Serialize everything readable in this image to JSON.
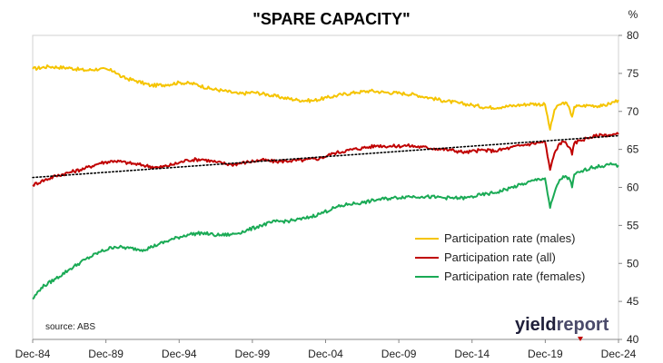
{
  "chart_data": {
    "type": "line",
    "title": "\"SPARE CAPACITY\"",
    "ylabel": "%",
    "ylim": [
      40,
      80
    ],
    "y_ticks": [
      40,
      45,
      50,
      55,
      60,
      65,
      70,
      75,
      80
    ],
    "x_tick_labels": [
      "Dec-84",
      "Dec-89",
      "Dec-94",
      "Dec-99",
      "Dec-04",
      "Dec-09",
      "Dec-14",
      "Dec-19",
      "Dec-24"
    ],
    "x_tick_years": [
      1984.92,
      1989.92,
      1994.92,
      1999.92,
      2004.92,
      2009.92,
      2014.92,
      2019.92,
      2024.92
    ],
    "xlim": [
      1984.92,
      2024.92
    ],
    "grid": false,
    "legend_position": "bottom-right",
    "series": [
      {
        "name": "Participation rate (males)",
        "color": "#f5c400",
        "points": [
          [
            1984.92,
            75.6
          ],
          [
            1986.0,
            75.9
          ],
          [
            1987.5,
            75.7
          ],
          [
            1988.5,
            75.4
          ],
          [
            1989.5,
            75.6
          ],
          [
            1990.5,
            75.3
          ],
          [
            1991.0,
            74.5
          ],
          [
            1992.0,
            74.0
          ],
          [
            1993.0,
            73.4
          ],
          [
            1994.0,
            73.5
          ],
          [
            1995.0,
            73.8
          ],
          [
            1996.0,
            73.6
          ],
          [
            1997.0,
            73.0
          ],
          [
            1998.0,
            72.7
          ],
          [
            1999.0,
            72.3
          ],
          [
            2000.0,
            72.5
          ],
          [
            2001.0,
            72.2
          ],
          [
            2002.0,
            71.8
          ],
          [
            2003.0,
            71.5
          ],
          [
            2004.0,
            71.4
          ],
          [
            2005.0,
            71.8
          ],
          [
            2006.0,
            72.2
          ],
          [
            2007.0,
            72.5
          ],
          [
            2008.0,
            72.7
          ],
          [
            2009.0,
            72.5
          ],
          [
            2010.0,
            72.4
          ],
          [
            2011.0,
            72.2
          ],
          [
            2012.0,
            71.8
          ],
          [
            2013.0,
            71.4
          ],
          [
            2014.0,
            71.1
          ],
          [
            2015.0,
            70.8
          ],
          [
            2016.0,
            70.5
          ],
          [
            2017.0,
            70.6
          ],
          [
            2018.0,
            70.8
          ],
          [
            2019.0,
            71.0
          ],
          [
            2019.9,
            70.9
          ],
          [
            2020.25,
            67.6
          ],
          [
            2020.55,
            70.2
          ],
          [
            2020.9,
            70.9
          ],
          [
            2021.3,
            71.2
          ],
          [
            2021.6,
            70.2
          ],
          [
            2021.75,
            69.3
          ],
          [
            2021.9,
            70.6
          ],
          [
            2022.3,
            70.7
          ],
          [
            2023.0,
            70.8
          ],
          [
            2023.8,
            70.7
          ],
          [
            2024.3,
            71.0
          ],
          [
            2024.92,
            71.5
          ]
        ]
      },
      {
        "name": "Participation rate (all)",
        "color": "#c00000",
        "points": [
          [
            1984.92,
            60.3
          ],
          [
            1985.5,
            60.8
          ],
          [
            1986.5,
            61.5
          ],
          [
            1987.5,
            62.0
          ],
          [
            1988.5,
            62.5
          ],
          [
            1989.5,
            63.2
          ],
          [
            1990.5,
            63.5
          ],
          [
            1991.5,
            63.2
          ],
          [
            1992.5,
            62.9
          ],
          [
            1993.5,
            62.6
          ],
          [
            1994.5,
            63.0
          ],
          [
            1995.5,
            63.6
          ],
          [
            1996.5,
            63.7
          ],
          [
            1997.5,
            63.3
          ],
          [
            1998.5,
            63.0
          ],
          [
            1999.5,
            63.3
          ],
          [
            2000.5,
            63.6
          ],
          [
            2001.5,
            63.4
          ],
          [
            2002.5,
            63.5
          ],
          [
            2003.5,
            63.6
          ],
          [
            2004.5,
            63.8
          ],
          [
            2005.5,
            64.5
          ],
          [
            2006.5,
            64.9
          ],
          [
            2007.5,
            65.2
          ],
          [
            2008.5,
            65.5
          ],
          [
            2009.5,
            65.4
          ],
          [
            2010.5,
            65.5
          ],
          [
            2011.5,
            65.3
          ],
          [
            2012.5,
            65.1
          ],
          [
            2013.5,
            64.9
          ],
          [
            2014.5,
            64.6
          ],
          [
            2015.5,
            64.9
          ],
          [
            2016.5,
            64.8
          ],
          [
            2017.5,
            65.2
          ],
          [
            2018.5,
            65.6
          ],
          [
            2019.5,
            65.9
          ],
          [
            2019.9,
            66.0
          ],
          [
            2020.25,
            62.3
          ],
          [
            2020.55,
            64.5
          ],
          [
            2020.9,
            65.8
          ],
          [
            2021.3,
            66.0
          ],
          [
            2021.6,
            65.2
          ],
          [
            2021.75,
            64.3
          ],
          [
            2021.9,
            65.8
          ],
          [
            2022.3,
            66.2
          ],
          [
            2023.0,
            66.6
          ],
          [
            2023.8,
            66.9
          ],
          [
            2024.3,
            66.9
          ],
          [
            2024.92,
            67.0
          ]
        ]
      },
      {
        "name": "Participation rate (females)",
        "color": "#1aaa55",
        "points": [
          [
            1984.92,
            45.3
          ],
          [
            1985.5,
            46.8
          ],
          [
            1986.5,
            48.0
          ],
          [
            1987.5,
            49.3
          ],
          [
            1988.5,
            50.5
          ],
          [
            1989.5,
            51.5
          ],
          [
            1990.5,
            52.2
          ],
          [
            1991.5,
            52.0
          ],
          [
            1992.5,
            51.8
          ],
          [
            1993.5,
            52.5
          ],
          [
            1994.5,
            53.2
          ],
          [
            1995.5,
            53.8
          ],
          [
            1996.5,
            54.0
          ],
          [
            1997.5,
            53.7
          ],
          [
            1998.5,
            53.8
          ],
          [
            1999.5,
            54.3
          ],
          [
            2000.5,
            55.0
          ],
          [
            2001.5,
            55.5
          ],
          [
            2002.5,
            55.6
          ],
          [
            2003.5,
            55.9
          ],
          [
            2004.5,
            56.5
          ],
          [
            2005.5,
            57.3
          ],
          [
            2006.5,
            57.8
          ],
          [
            2007.5,
            58.0
          ],
          [
            2008.5,
            58.4
          ],
          [
            2009.5,
            58.6
          ],
          [
            2010.5,
            58.8
          ],
          [
            2011.5,
            58.8
          ],
          [
            2012.5,
            58.7
          ],
          [
            2013.5,
            58.6
          ],
          [
            2014.5,
            58.6
          ],
          [
            2015.5,
            59.0
          ],
          [
            2016.5,
            59.3
          ],
          [
            2017.5,
            59.9
          ],
          [
            2018.5,
            60.5
          ],
          [
            2019.5,
            61.1
          ],
          [
            2019.9,
            61.2
          ],
          [
            2020.25,
            57.3
          ],
          [
            2020.55,
            59.3
          ],
          [
            2020.9,
            61.0
          ],
          [
            2021.3,
            61.5
          ],
          [
            2021.6,
            61.0
          ],
          [
            2021.75,
            60.0
          ],
          [
            2021.9,
            61.7
          ],
          [
            2022.3,
            62.0
          ],
          [
            2023.0,
            62.6
          ],
          [
            2023.8,
            62.8
          ],
          [
            2024.3,
            63.0
          ],
          [
            2024.92,
            62.9
          ]
        ]
      }
    ],
    "trendline": {
      "series": "Participation rate (all)",
      "color": "#000000",
      "style": "dotted",
      "points": [
        [
          1984.92,
          61.3
        ],
        [
          2024.92,
          66.8
        ]
      ]
    },
    "annotations": {
      "source": "source: ABS"
    }
  },
  "logo": {
    "part1": "yield",
    "part2": "report",
    "color1": "#1f1f3a",
    "color2": "#4a4a6a",
    "accent": "#c00000"
  }
}
